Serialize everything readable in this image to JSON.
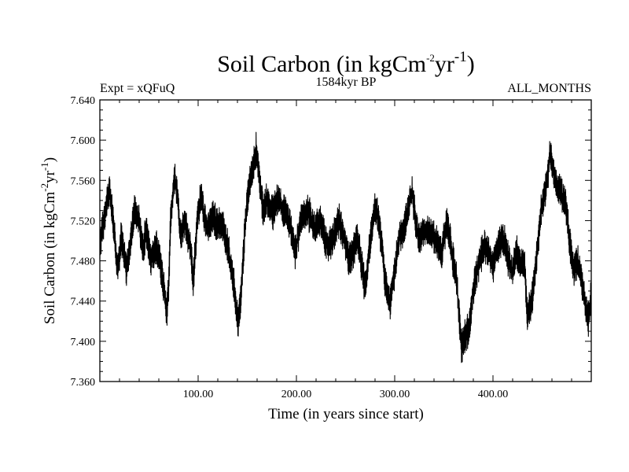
{
  "chart_data": {
    "type": "line",
    "title": {
      "main": "Soil Carbon (in kgCm",
      "sup1": "-2",
      "mid": "yr",
      "sup2": "-1",
      "end": ")"
    },
    "experiment_label": "Expt = xQFuQ",
    "period_label": "1584kyr BP",
    "months_label": "ALL_MONTHS",
    "xlabel": "Time (in years since start)",
    "ylabel": {
      "main": "Soil Carbon (in kgCm",
      "sup1": "-2",
      "mid": "yr",
      "sup2": "-1",
      "end": ")"
    },
    "xlim": [
      0,
      500
    ],
    "ylim": [
      7.36,
      7.64
    ],
    "x_ticks": [
      100,
      200,
      300,
      400
    ],
    "x_tick_labels": [
      "100.00",
      "200.00",
      "300.00",
      "400.00"
    ],
    "y_ticks": [
      7.36,
      7.4,
      7.44,
      7.48,
      7.52,
      7.56,
      7.6,
      7.64
    ],
    "y_tick_labels": [
      "7.360",
      "7.400",
      "7.440",
      "7.480",
      "7.520",
      "7.560",
      "7.600",
      "7.640"
    ],
    "series": [
      {
        "name": "Soil Carbon",
        "x": [
          0,
          5,
          8,
          10,
          14,
          18,
          22,
          27,
          30,
          35,
          40,
          44,
          47,
          52,
          57,
          62,
          66,
          68,
          70,
          72,
          76,
          79,
          82,
          86,
          92,
          95,
          99,
          103,
          108,
          111,
          116,
          119,
          124,
          130,
          136,
          139,
          141,
          144,
          148,
          152,
          156,
          159,
          162,
          166,
          170,
          176,
          182,
          186,
          190,
          196,
          199,
          204,
          209,
          214,
          219,
          224,
          228,
          232,
          238,
          243,
          246,
          250,
          254,
          258,
          262,
          266,
          270,
          275,
          280,
          284,
          287,
          290,
          295,
          300,
          305,
          309,
          314,
          318,
          321,
          325,
          330,
          335,
          339,
          344,
          348,
          353,
          358,
          363,
          366,
          368,
          372,
          376,
          380,
          386,
          391,
          396,
          400,
          404,
          408,
          412,
          416,
          420,
          424,
          428,
          432,
          435,
          440,
          445,
          449,
          452,
          456,
          458,
          462,
          466,
          470,
          474,
          478,
          482,
          486,
          490,
          494,
          497,
          500
        ],
        "values": [
          7.495,
          7.525,
          7.545,
          7.548,
          7.515,
          7.468,
          7.505,
          7.47,
          7.49,
          7.53,
          7.52,
          7.49,
          7.512,
          7.48,
          7.495,
          7.475,
          7.445,
          7.428,
          7.455,
          7.52,
          7.565,
          7.545,
          7.505,
          7.52,
          7.495,
          7.458,
          7.52,
          7.545,
          7.515,
          7.515,
          7.525,
          7.515,
          7.518,
          7.495,
          7.46,
          7.43,
          7.42,
          7.45,
          7.52,
          7.555,
          7.575,
          7.59,
          7.565,
          7.53,
          7.54,
          7.528,
          7.545,
          7.53,
          7.525,
          7.505,
          7.488,
          7.52,
          7.53,
          7.525,
          7.51,
          7.52,
          7.505,
          7.495,
          7.505,
          7.52,
          7.51,
          7.495,
          7.48,
          7.49,
          7.505,
          7.478,
          7.45,
          7.5,
          7.535,
          7.518,
          7.495,
          7.46,
          7.438,
          7.47,
          7.505,
          7.508,
          7.535,
          7.55,
          7.52,
          7.5,
          7.512,
          7.508,
          7.505,
          7.495,
          7.488,
          7.52,
          7.49,
          7.46,
          7.42,
          7.395,
          7.405,
          7.415,
          7.45,
          7.48,
          7.495,
          7.488,
          7.475,
          7.492,
          7.5,
          7.498,
          7.48,
          7.468,
          7.49,
          7.475,
          7.478,
          7.425,
          7.445,
          7.49,
          7.53,
          7.545,
          7.565,
          7.59,
          7.565,
          7.555,
          7.545,
          7.535,
          7.5,
          7.47,
          7.48,
          7.462,
          7.438,
          7.42,
          7.445
        ]
      }
    ],
    "line_color": "#000000",
    "grid": false
  }
}
